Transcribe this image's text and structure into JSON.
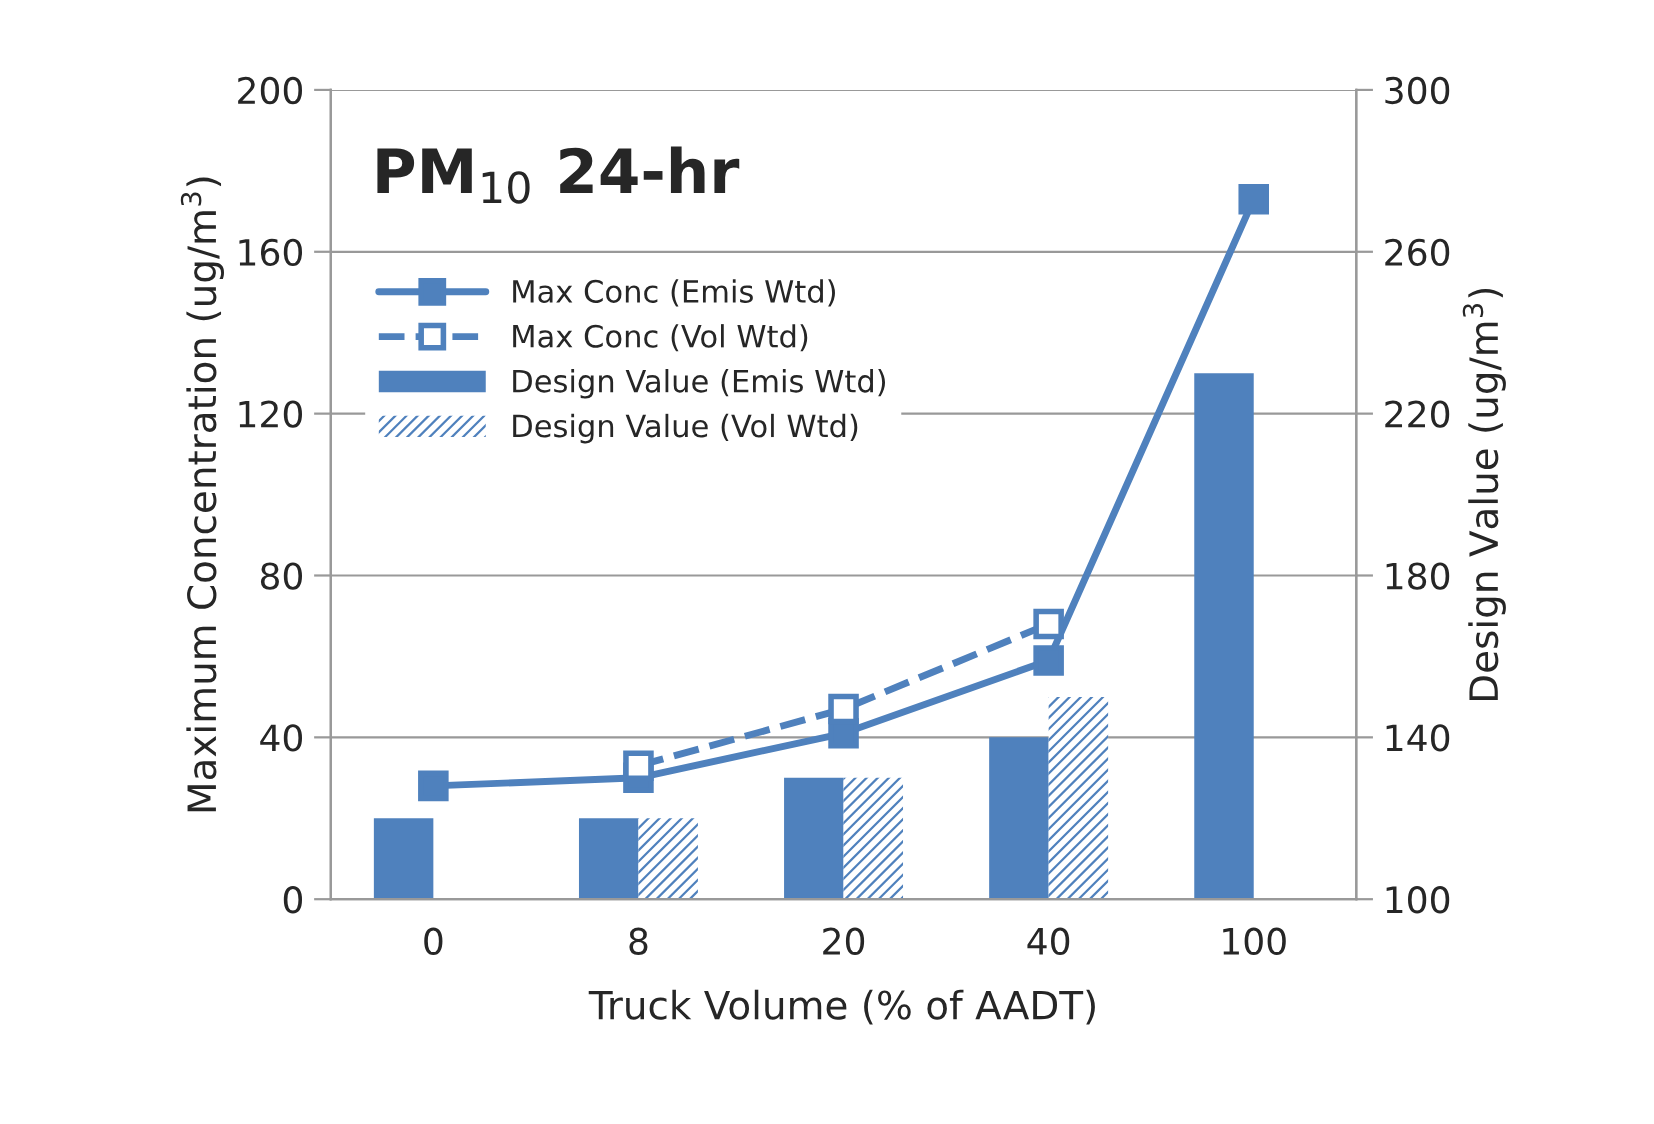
{
  "chart_data": {
    "type": "bar",
    "title": "PM$_{10}$ 24-hr",
    "xlabel": "Truck Volume (% of AADT)",
    "ylabel": "Maximum Concentration (ug/m$^{3}$)",
    "y2label": "Design Value (ug/m$^{3}$)",
    "categories": [
      "0",
      "8",
      "20",
      "40",
      "100"
    ],
    "series": [
      {
        "name": "Max Conc (Emis Wtd)",
        "type": "line",
        "color": "#4f81bd",
        "marker": "square",
        "line_style": "solid",
        "values": [
          28,
          30,
          41,
          59,
          173
        ]
      },
      {
        "name": "Max Conc (Vol Wtd)",
        "type": "line",
        "color": "#4f81bd",
        "marker": "square",
        "line_style": "dashed",
        "values": [
          null,
          33,
          47,
          68,
          null
        ]
      },
      {
        "name": "Design Value (Emis Wtd)",
        "axis": "y2",
        "color": "#4f81bd",
        "values": [
          120,
          120,
          130,
          140,
          230
        ]
      },
      {
        "name": "Design Value (Vol Wtd)",
        "axis": "y2",
        "color": "#4f81bd",
        "values": [
          null,
          120,
          130,
          150,
          null
        ]
      }
    ],
    "ylim": [
      0,
      200
    ],
    "yticks": [
      0,
      40,
      80,
      120,
      160,
      200
    ],
    "y2lim": [
      100,
      300
    ],
    "y2ticks": [
      100,
      140,
      180,
      220,
      260,
      300
    ],
    "grid": "y",
    "legend": "top left"
  }
}
